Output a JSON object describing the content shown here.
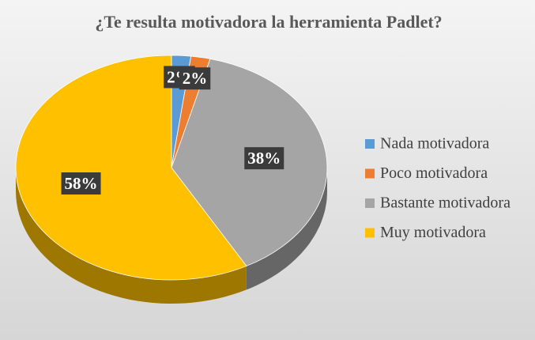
{
  "chart_data": {
    "type": "pie",
    "title": "¿Te resulta motivadora la herramienta Padlet?",
    "categories": [
      "Nada motivadora",
      "Poco motivadora",
      "Bastante motivadora",
      "Muy motivadora"
    ],
    "values": [
      2,
      2,
      38,
      58
    ],
    "value_labels": [
      "2%",
      "2%",
      "38%",
      "58%"
    ],
    "colors": [
      "#5b9bd5",
      "#ed7d31",
      "#a5a5a5",
      "#ffc000"
    ],
    "legend": "right"
  }
}
